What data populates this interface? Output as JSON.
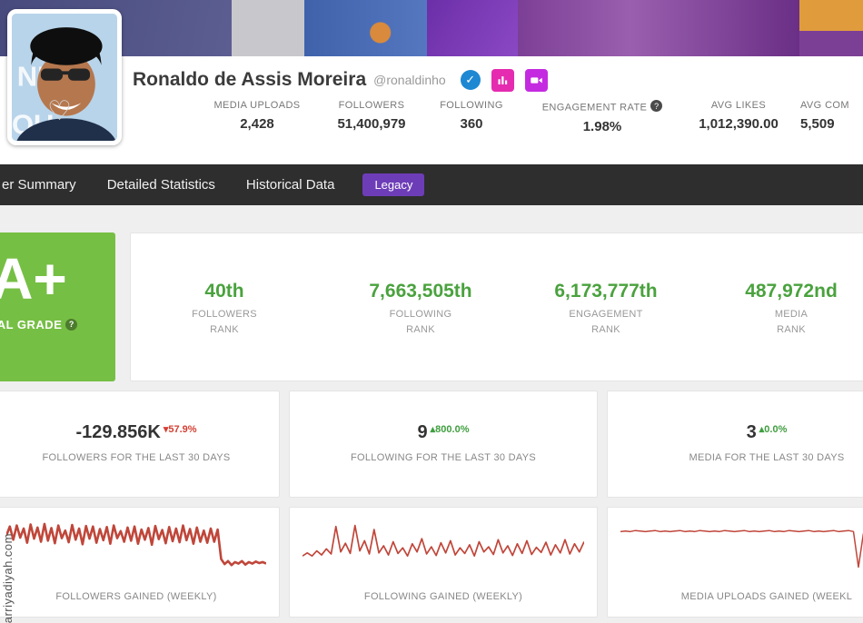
{
  "profile": {
    "name": "Ronaldo de Assis Moreira",
    "handle": "@ronaldinho",
    "avatar_text_top": "NE",
    "avatar_text_bottom": "OU",
    "help_icon": "?",
    "stats": [
      {
        "label": "MEDIA UPLOADS",
        "value": "2,428"
      },
      {
        "label": "FOLLOWERS",
        "value": "51,400,979"
      },
      {
        "label": "FOLLOWING",
        "value": "360"
      },
      {
        "label": "ENGAGEMENT RATE",
        "value": "1.98%"
      },
      {
        "label": "AVG LIKES",
        "value": "1,012,390.00"
      },
      {
        "label": "AVG COM",
        "value": "5,509"
      }
    ]
  },
  "icons": {
    "verified": "✓",
    "heart": "♡"
  },
  "nav": {
    "items": [
      {
        "label": "er Summary"
      },
      {
        "label": "Detailed Statistics"
      },
      {
        "label": "Historical Data"
      }
    ],
    "legacy_label": "Legacy"
  },
  "grade": {
    "value": "A+",
    "label": "OTAL GRADE",
    "help": "?"
  },
  "ranks": [
    {
      "value": "40th",
      "line1": "FOLLOWERS",
      "line2": "RANK"
    },
    {
      "value": "7,663,505th",
      "line1": "FOLLOWING",
      "line2": "RANK"
    },
    {
      "value": "6,173,777th",
      "line1": "ENGAGEMENT",
      "line2": "RANK"
    },
    {
      "value": "487,972nd",
      "line1": "MEDIA",
      "line2": "RANK"
    }
  ],
  "summary_cards": [
    {
      "value": "-129.856K",
      "delta": "▾57.9%",
      "direction": "down",
      "label": "FOLLOWERS FOR THE LAST 30 DAYS"
    },
    {
      "value": "9",
      "delta": "▴800.0%",
      "direction": "up",
      "label": "FOLLOWING FOR THE LAST 30 DAYS"
    },
    {
      "value": "3",
      "delta": "▴0.0%",
      "direction": "up",
      "label": "MEDIA FOR THE LAST 30 DAYS"
    }
  ],
  "chart_data": [
    {
      "type": "line",
      "title": "FOLLOWERS GAINED (WEEKLY)",
      "ylim": [
        0,
        100
      ],
      "stroke": 2.6,
      "values": [
        70,
        88,
        62,
        90,
        66,
        84,
        56,
        92,
        64,
        86,
        58,
        93,
        60,
        85,
        55,
        90,
        65,
        80,
        57,
        91,
        62,
        84,
        53,
        89,
        64,
        88,
        56,
        83,
        61,
        87,
        54,
        90,
        65,
        79,
        58,
        86,
        60,
        88,
        54,
        82,
        62,
        85,
        52,
        89,
        63,
        81,
        55,
        87,
        59,
        84,
        57,
        90,
        61,
        83,
        54,
        86,
        58,
        80,
        56,
        84,
        58,
        82,
        24,
        14,
        20,
        12,
        18,
        15,
        20,
        13,
        18,
        15,
        19,
        16,
        18,
        15
      ]
    },
    {
      "type": "line",
      "title": "FOLLOWING GAINED (WEEKLY)",
      "ylim": [
        0,
        100
      ],
      "stroke": 1.7,
      "values": [
        30,
        36,
        30,
        40,
        32,
        44,
        34,
        88,
        38,
        55,
        35,
        90,
        40,
        60,
        34,
        82,
        36,
        50,
        32,
        58,
        35,
        46,
        30,
        54,
        38,
        64,
        34,
        48,
        31,
        56,
        36,
        60,
        32,
        46,
        35,
        52,
        30,
        58,
        38,
        48,
        33,
        62,
        36,
        50,
        31,
        54,
        35,
        60,
        33,
        47,
        37,
        57,
        32,
        52,
        36,
        62,
        34,
        54,
        38,
        58
      ]
    },
    {
      "type": "line",
      "title": "MEDIA UPLOADS GAINED (WEEKL",
      "ylim": [
        0,
        100
      ],
      "stroke": 1.5,
      "values": [
        78,
        79,
        78,
        80,
        79,
        78,
        79,
        80,
        78,
        79,
        78,
        79,
        80,
        78,
        79,
        78,
        80,
        79,
        78,
        79,
        78,
        80,
        79,
        78,
        79,
        80,
        78,
        79,
        78,
        79,
        80,
        78,
        79,
        78,
        80,
        79,
        78,
        79,
        80,
        78,
        79,
        78,
        79,
        80,
        78,
        79,
        80,
        78,
        8,
        74,
        79,
        78,
        80,
        79,
        78,
        79,
        80,
        78,
        79,
        78
      ]
    }
  ],
  "watermark": "arriyadiyah.com",
  "colors": {
    "spark": "#c0463a",
    "up": "#3f9e3f",
    "down": "#d43f33",
    "grade_bg": "#76bf45",
    "rank_green": "#4aa23e",
    "legacy": "#6d3db8",
    "verified": "#1e88d2",
    "nav_bg": "#2e2e2e"
  }
}
